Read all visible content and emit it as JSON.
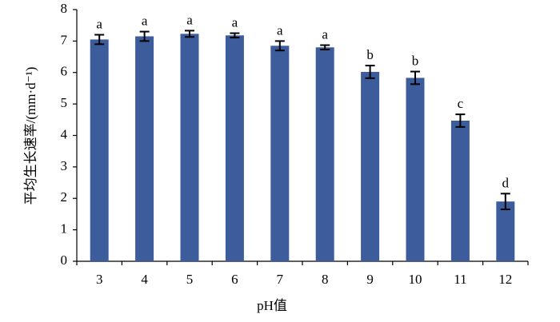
{
  "chart_data": {
    "type": "bar",
    "x_label": "pH值",
    "y_label": "平均生长速率/(mm·d⁻¹)",
    "categories": [
      "3",
      "4",
      "5",
      "6",
      "7",
      "8",
      "9",
      "10",
      "11",
      "12"
    ],
    "values": [
      7.05,
      7.15,
      7.23,
      7.18,
      6.85,
      6.8,
      6.02,
      5.83,
      4.47,
      1.9
    ],
    "errors": [
      0.15,
      0.15,
      0.1,
      0.07,
      0.15,
      0.07,
      0.2,
      0.2,
      0.2,
      0.25
    ],
    "significance_letters": [
      "a",
      "a",
      "a",
      "a",
      "a",
      "a",
      "b",
      "b",
      "c",
      "d"
    ],
    "color": "#3d5c9c",
    "ylim": [
      0,
      8
    ],
    "yticks": [
      0,
      1,
      2,
      3,
      4,
      5,
      6,
      7,
      8
    ],
    "grid": false
  }
}
